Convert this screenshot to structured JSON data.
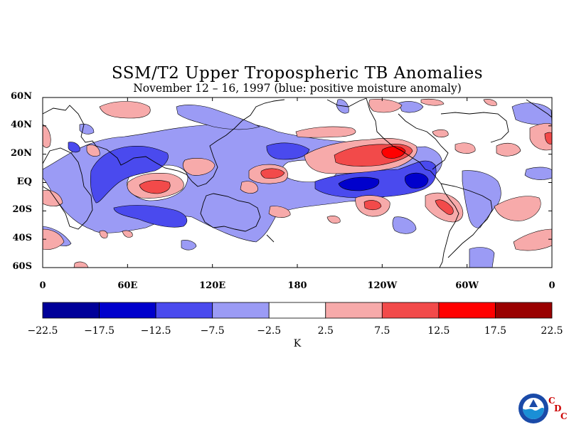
{
  "title": "SSM/T2 Upper Tropospheric TB Anomalies",
  "subtitle": "November 12 – 16, 1997 (blue: positive moisture anomaly)",
  "map": {
    "lat_labels": [
      {
        "text": "60N",
        "lat": 60
      },
      {
        "text": "40N",
        "lat": 40
      },
      {
        "text": "20N",
        "lat": 20
      },
      {
        "text": "EQ",
        "lat": 0
      },
      {
        "text": "20S",
        "lat": -20
      },
      {
        "text": "40S",
        "lat": -40
      },
      {
        "text": "60S",
        "lat": -60
      }
    ],
    "lon_labels": [
      {
        "text": "0",
        "lon": 0
      },
      {
        "text": "60E",
        "lon": 60
      },
      {
        "text": "120E",
        "lon": 120
      },
      {
        "text": "180",
        "lon": 180
      },
      {
        "text": "120W",
        "lon": 240
      },
      {
        "text": "60W",
        "lon": 300
      },
      {
        "text": "0",
        "lon": 360
      }
    ],
    "lon_range": [
      0,
      360
    ],
    "lat_range": [
      -60,
      60
    ]
  },
  "colorbar": {
    "colors": [
      "#000099",
      "#0000cc",
      "#4a4aee",
      "#9b9bf5",
      "#ffffff",
      "#f7aaaa",
      "#f24a4a",
      "#ff0000",
      "#990000"
    ],
    "labels": [
      "−22.5",
      "−17.5",
      "−12.5",
      "−7.5",
      "−2.5",
      "2.5",
      "7.5",
      "12.5",
      "17.5",
      "22.5"
    ],
    "units": "K"
  },
  "logo": {
    "c1": "C",
    "d": "D",
    "c2": "C"
  }
}
